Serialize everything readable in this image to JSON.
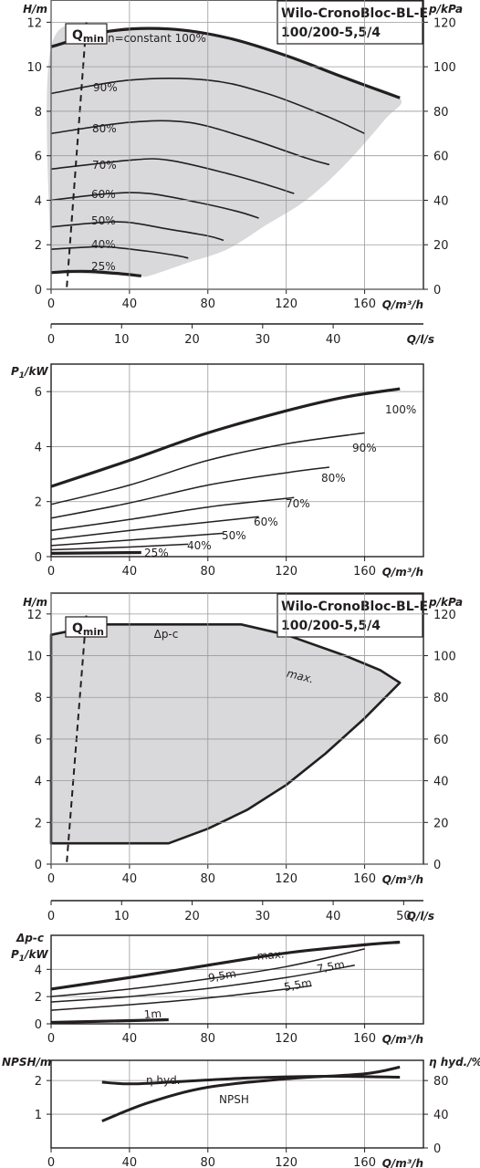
{
  "chart_data": [
    {
      "type": "line",
      "title": "Wilo-CronoBloc-BL-E 100/200-5,5/4",
      "title_lines": [
        "Wilo-CronoBloc-BL-E",
        "100/200-5,5/4"
      ],
      "xlabel": "Q/m³/h",
      "ylabel": "H/m",
      "y2label": "p/kPa",
      "xlim": [
        0,
        190
      ],
      "ylim": [
        0,
        13
      ],
      "y2lim": [
        0,
        130
      ],
      "x_ticks": [
        "0",
        "40",
        "80",
        "120",
        "160"
      ],
      "y_ticks": [
        "0",
        "2",
        "4",
        "6",
        "8",
        "10",
        "12"
      ],
      "y2_ticks": [
        "0",
        "20",
        "40",
        "60",
        "80",
        "100",
        "120"
      ],
      "qmin_label": "Q",
      "qmin_sub": "min",
      "grid": true,
      "series": [
        {
          "name": "n=constant 100%",
          "x": [
            0,
            30,
            60,
            90,
            120,
            150,
            178
          ],
          "y": [
            10.9,
            11.6,
            11.7,
            11.3,
            10.5,
            9.5,
            8.6
          ]
        },
        {
          "name": "90%",
          "x": [
            0,
            40,
            80,
            110,
            140,
            160
          ],
          "y": [
            8.8,
            9.4,
            9.4,
            8.8,
            7.8,
            7.0
          ]
        },
        {
          "name": "80%",
          "x": [
            0,
            40,
            70,
            100,
            130,
            142
          ],
          "y": [
            7.0,
            7.5,
            7.5,
            6.8,
            5.9,
            5.6
          ]
        },
        {
          "name": "70%",
          "x": [
            0,
            40,
            60,
            90,
            110,
            124
          ],
          "y": [
            5.4,
            5.8,
            5.8,
            5.2,
            4.7,
            4.3
          ]
        },
        {
          "name": "60%",
          "x": [
            0,
            30,
            50,
            75,
            95,
            106
          ],
          "y": [
            4.0,
            4.3,
            4.3,
            3.9,
            3.5,
            3.2
          ]
        },
        {
          "name": "50%",
          "x": [
            0,
            25,
            40,
            60,
            80,
            88
          ],
          "y": [
            2.8,
            3.0,
            3.0,
            2.7,
            2.4,
            2.2
          ]
        },
        {
          "name": "40%",
          "x": [
            0,
            20,
            30,
            50,
            65,
            70
          ],
          "y": [
            1.8,
            1.9,
            1.9,
            1.7,
            1.5,
            1.4
          ]
        },
        {
          "name": "25%",
          "x": [
            0,
            10,
            20,
            35,
            46
          ],
          "y": [
            0.75,
            0.8,
            0.8,
            0.7,
            0.6
          ]
        }
      ],
      "qmin_line": {
        "x": [
          8,
          18
        ],
        "y": [
          0.1,
          12.0
        ]
      },
      "gray_region": {
        "x": [
          0,
          0,
          30,
          60,
          90,
          120,
          150,
          178,
          170,
          150,
          130,
          110,
          90,
          70,
          50,
          46
        ],
        "y": [
          0.75,
          10.9,
          11.6,
          11.7,
          11.3,
          10.5,
          9.5,
          8.6,
          7.6,
          5.6,
          4.0,
          2.9,
          1.8,
          1.2,
          0.6,
          0.6
        ]
      }
    },
    {
      "type": "axis",
      "xlabel": "Q/l/s",
      "xlim": [
        0,
        52.8
      ],
      "x_ticks": [
        "0",
        "10",
        "20",
        "30",
        "40"
      ],
      "x_tick_values": [
        0,
        10,
        20,
        30,
        40
      ]
    },
    {
      "type": "line",
      "ylabel": "P",
      "ylabel_sub": "1",
      "ylabel_unit": "/kW",
      "xlabel": "Q/m³/h",
      "xlim": [
        0,
        190
      ],
      "ylim": [
        0,
        7
      ],
      "x_ticks": [
        "0",
        "40",
        "80",
        "120",
        "160"
      ],
      "y_ticks": [
        "0",
        "2",
        "4",
        "6"
      ],
      "grid": true,
      "series": [
        {
          "name": "100%",
          "x": [
            0,
            40,
            80,
            120,
            150,
            178
          ],
          "y": [
            2.55,
            3.5,
            4.5,
            5.3,
            5.8,
            6.1
          ]
        },
        {
          "name": "90%",
          "x": [
            0,
            40,
            80,
            120,
            160
          ],
          "y": [
            1.9,
            2.6,
            3.5,
            4.1,
            4.5
          ]
        },
        {
          "name": "80%",
          "x": [
            0,
            40,
            80,
            120,
            142
          ],
          "y": [
            1.4,
            1.95,
            2.6,
            3.05,
            3.25
          ]
        },
        {
          "name": "70%",
          "x": [
            0,
            40,
            80,
            124
          ],
          "y": [
            0.95,
            1.35,
            1.8,
            2.15
          ]
        },
        {
          "name": "60%",
          "x": [
            0,
            40,
            80,
            106
          ],
          "y": [
            0.62,
            0.95,
            1.25,
            1.45
          ]
        },
        {
          "name": "50%",
          "x": [
            0,
            40,
            88
          ],
          "y": [
            0.4,
            0.6,
            0.85
          ]
        },
        {
          "name": "40%",
          "x": [
            0,
            40,
            70
          ],
          "y": [
            0.25,
            0.35,
            0.45
          ]
        },
        {
          "name": "25%",
          "x": [
            0,
            46
          ],
          "y": [
            0.12,
            0.15
          ]
        }
      ]
    },
    {
      "type": "line",
      "title": "Wilo-CronoBloc-BL-E 100/200-5,5/4",
      "title_lines": [
        "Wilo-CronoBloc-BL-E",
        "100/200-5,5/4"
      ],
      "xlabel": "Q/m³/h",
      "ylabel": "H/m",
      "y2label": "p/kPa",
      "xlim": [
        0,
        190
      ],
      "ylim": [
        0,
        13
      ],
      "y2lim": [
        0,
        130
      ],
      "x_ticks": [
        "0",
        "40",
        "80",
        "120",
        "160"
      ],
      "y_ticks": [
        "0",
        "2",
        "4",
        "6",
        "8",
        "10",
        "12"
      ],
      "y2_ticks": [
        "0",
        "20",
        "40",
        "60",
        "80",
        "100",
        "120"
      ],
      "qmin_label": "Q",
      "qmin_sub": "min",
      "annotations": [
        "Δp-c",
        "max."
      ],
      "grid": true,
      "region_outline": {
        "x": [
          0,
          0,
          26,
          97,
          120,
          150,
          168,
          178,
          160,
          140,
          120,
          100,
          80,
          60,
          60
        ],
        "y": [
          1.0,
          11.0,
          11.5,
          11.5,
          11.0,
          10.0,
          9.3,
          8.7,
          7.0,
          5.3,
          3.8,
          2.6,
          1.7,
          1.0,
          1.0
        ]
      },
      "qmin_line": {
        "x": [
          8,
          18
        ],
        "y": [
          0.1,
          12.0
        ]
      }
    },
    {
      "type": "axis",
      "xlabel": "Q/l/s",
      "xlim": [
        0,
        52.8
      ],
      "x_ticks": [
        "0",
        "10",
        "20",
        "30",
        "40",
        "50"
      ],
      "x_tick_values": [
        0,
        10,
        20,
        30,
        40,
        50
      ]
    },
    {
      "type": "line",
      "ylabel_top": "Δp-c",
      "ylabel": "P",
      "ylabel_sub": "1",
      "ylabel_unit": "/kW",
      "xlabel": "Q/m³/h",
      "xlim": [
        0,
        190
      ],
      "ylim": [
        0,
        6.5
      ],
      "x_ticks": [
        "0",
        "40",
        "80",
        "120",
        "160"
      ],
      "y_ticks": [
        "0",
        "2",
        "4"
      ],
      "grid": true,
      "series": [
        {
          "name": "max.",
          "x": [
            0,
            40,
            80,
            120,
            160,
            178
          ],
          "y": [
            2.55,
            3.4,
            4.3,
            5.2,
            5.8,
            6.0
          ]
        },
        {
          "name": "9,5m",
          "x": [
            0,
            40,
            80,
            120,
            160
          ],
          "y": [
            2.0,
            2.55,
            3.3,
            4.2,
            5.5
          ]
        },
        {
          "name": "7,5m",
          "x": [
            0,
            40,
            80,
            120,
            155
          ],
          "y": [
            1.6,
            2.0,
            2.6,
            3.4,
            4.3
          ]
        },
        {
          "name": "5,5m",
          "x": [
            0,
            40,
            80,
            120,
            133
          ],
          "y": [
            1.0,
            1.4,
            1.9,
            2.55,
            2.8
          ]
        },
        {
          "name": "1m",
          "x": [
            0,
            60
          ],
          "y": [
            0.1,
            0.3
          ]
        }
      ]
    },
    {
      "type": "line",
      "ylabel": "NPSH/m",
      "y2label": "η hyd./%",
      "xlabel": "Q/m³/h",
      "xlim": [
        0,
        190
      ],
      "ylim": [
        0,
        2.6
      ],
      "y2lim": [
        0,
        104
      ],
      "x_ticks": [
        "0",
        "40",
        "80",
        "120",
        "160"
      ],
      "y_ticks": [
        "1",
        "2"
      ],
      "y2_ticks": [
        "0",
        "40",
        "80"
      ],
      "grid": true,
      "series": [
        {
          "name": "η hyd.",
          "axis": "right",
          "x": [
            26,
            40,
            60,
            100,
            140,
            178
          ],
          "y": [
            78,
            76,
            78,
            83,
            85,
            84
          ]
        },
        {
          "name": "NPSH",
          "axis": "left",
          "x": [
            26,
            50,
            80,
            120,
            160,
            178
          ],
          "y": [
            0.8,
            1.35,
            1.8,
            2.05,
            2.2,
            2.4
          ]
        }
      ]
    }
  ]
}
